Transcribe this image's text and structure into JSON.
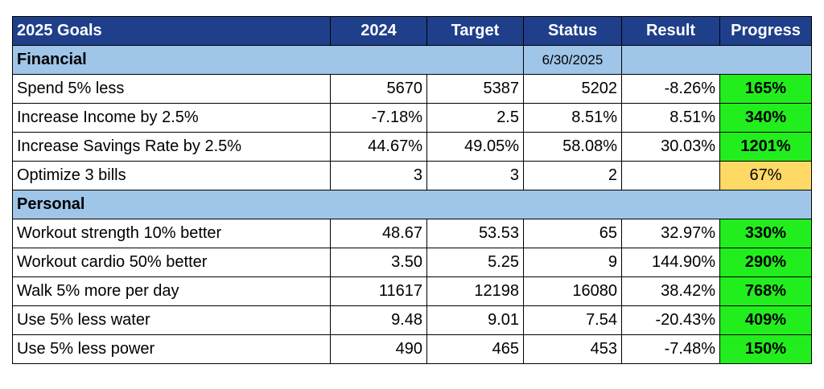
{
  "table": {
    "header": [
      "2025 Goals",
      "2024",
      "Target",
      "Status",
      "Result",
      "Progress"
    ],
    "sections": [
      {
        "label": "Financial",
        "date": "6/30/2025",
        "rows": [
          {
            "cells": [
              "Spend 5% less",
              "5670",
              "5387",
              "5202",
              "-8.26%",
              "165%"
            ],
            "color": "#22ee1e",
            "bold": true
          },
          {
            "cells": [
              "Increase Income by 2.5%",
              "-7.18%",
              "2.5",
              "8.51%",
              "8.51%",
              "340%"
            ],
            "color": "#22ee1e",
            "bold": true
          },
          {
            "cells": [
              "Increase Savings Rate by 2.5%",
              "44.67%",
              "49.05%",
              "58.08%",
              "30.03%",
              "1201%"
            ],
            "color": "#22ee1e",
            "bold": true
          },
          {
            "cells": [
              "Optimize 3 bills",
              "3",
              "3",
              "2",
              null,
              "67%"
            ],
            "color": "#ffd966",
            "bold": false
          }
        ]
      },
      {
        "label": "Personal",
        "rows": [
          {
            "cells": [
              "Workout strength 10% better",
              "48.67",
              "53.53",
              "65",
              "32.97%",
              "330%"
            ],
            "color": "#22ee1e",
            "bold": true
          },
          {
            "cells": [
              "Workout cardio 50% better",
              "3.50",
              "5.25",
              "9",
              "144.90%",
              "290%"
            ],
            "color": "#22ee1e",
            "bold": true
          },
          {
            "cells": [
              "Walk 5% more per day",
              "11617",
              "12198",
              "16080",
              "38.42%",
              "768%"
            ],
            "color": "#22ee1e",
            "bold": true
          },
          {
            "cells": [
              "Use 5% less water",
              "9.48",
              "9.01",
              "7.54",
              "-20.43%",
              "409%"
            ],
            "color": "#22ee1e",
            "bold": true
          },
          {
            "cells": [
              "Use 5% less power",
              "490",
              "465",
              "453",
              "-7.48%",
              "150%"
            ],
            "color": "#22ee1e",
            "bold": true
          }
        ]
      }
    ]
  }
}
